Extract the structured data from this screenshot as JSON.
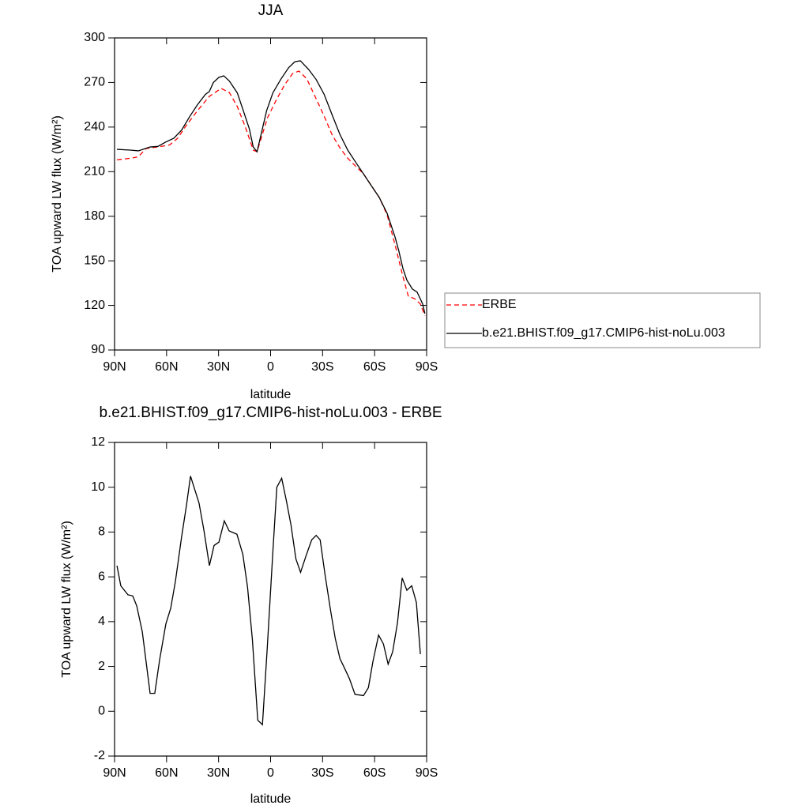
{
  "chart_data": [
    {
      "type": "line",
      "title": "JJA",
      "xlabel": "latitude",
      "ylabel": "TOA upward LW flux (W/m²)",
      "xlim": [
        90,
        -90
      ],
      "xticks": [
        {
          "value": 90,
          "label": "90N"
        },
        {
          "value": 60,
          "label": "60N"
        },
        {
          "value": 30,
          "label": "30N"
        },
        0,
        {
          "value": -30,
          "label": "30S"
        },
        {
          "value": -60,
          "label": "60S"
        },
        {
          "value": -90,
          "label": "90S"
        }
      ],
      "ylim": [
        90,
        300
      ],
      "yticks": [
        90,
        120,
        150,
        180,
        210,
        240,
        270,
        300
      ],
      "legend": "right",
      "series": [
        {
          "name": "ERBE",
          "color": "#ff0000",
          "dash": true,
          "x": [
            88.6,
            80.9,
            76.3,
            71.8,
            65,
            58.2,
            53.6,
            49,
            42.2,
            35.3,
            28.5,
            23.8,
            19.2,
            14.7,
            10,
            7.8,
            1.9,
            -3.6,
            -8.2,
            -12.7,
            -16.4,
            -20.9,
            -26.3,
            -30.9,
            -35.4,
            -40,
            -44.5,
            -53.6,
            -62.7,
            -67.2,
            -71.8,
            -76.3,
            -79.5,
            -83,
            -86.4,
            -89
          ],
          "values": [
            218,
            219,
            220,
            225.6,
            226.6,
            228,
            232.5,
            240.5,
            251,
            260.7,
            266,
            263.3,
            253.8,
            240.5,
            224.5,
            223.4,
            246,
            259,
            268.6,
            276,
            277.7,
            272.4,
            259,
            247.4,
            235,
            226,
            219,
            208.5,
            192.6,
            181,
            160.7,
            139.5,
            126,
            124.6,
            121,
            113
          ]
        },
        {
          "name": "b.e21.BHIST.f09_g17.CMIP6-hist-noLu.003",
          "color": "#000000",
          "dash": false,
          "x": [
            88.6,
            80.9,
            76.3,
            69.5,
            65,
            60.4,
            55.8,
            51.3,
            46.7,
            42.2,
            37.6,
            35.3,
            33,
            29.8,
            27,
            23.8,
            19.2,
            16,
            12.3,
            10,
            7.8,
            5.5,
            2.3,
            -1.3,
            -5.8,
            -10.4,
            -14,
            -17.2,
            -21.8,
            -26.3,
            -30.9,
            -35.4,
            -40,
            -44.5,
            -49,
            -53.6,
            -58.1,
            -62.7,
            -67.2,
            -71.8,
            -74,
            -76.3,
            -78.6,
            -81.8,
            -84.5,
            -87.7,
            -89
          ],
          "values": [
            225,
            224.5,
            224,
            226.6,
            227,
            230,
            232.5,
            238,
            247,
            255,
            262,
            264,
            270,
            273.5,
            274.5,
            271,
            263,
            252,
            239,
            226.6,
            223.4,
            235,
            251,
            263,
            272,
            280,
            284,
            284.6,
            279,
            272,
            262,
            248.5,
            235,
            224.5,
            216.5,
            208.5,
            200.6,
            192.6,
            182,
            166,
            156.5,
            145,
            137,
            131,
            129,
            121,
            114.5
          ]
        }
      ]
    },
    {
      "type": "line",
      "title": "b.e21.BHIST.f09_g17.CMIP6-hist-noLu.003 - ERBE",
      "xlabel": "latitude",
      "ylabel": "TOA upward LW flux (W/m²)",
      "xlim": [
        90,
        -90
      ],
      "xticks": [
        {
          "value": 90,
          "label": "90N"
        },
        {
          "value": 60,
          "label": "60N"
        },
        {
          "value": 30,
          "label": "30N"
        },
        0,
        {
          "value": -30,
          "label": "30S"
        },
        {
          "value": -60,
          "label": "60S"
        },
        {
          "value": -90,
          "label": "90S"
        }
      ],
      "ylim": [
        -2,
        12
      ],
      "yticks": [
        -2,
        0,
        2,
        4,
        6,
        8,
        10,
        12
      ],
      "color": "#000000",
      "x": [
        88.6,
        86.4,
        82.3,
        79.5,
        77.2,
        74,
        69.5,
        66.8,
        64,
        60.4,
        57.6,
        54.9,
        51.3,
        48.5,
        46.2,
        41.3,
        38.5,
        35.3,
        32.6,
        29.8,
        26.7,
        23.9,
        19.4,
        16,
        13.3,
        10.5,
        7.4,
        4.7,
        1.9,
        -1.3,
        -3.6,
        -6.4,
        -9.1,
        -11.8,
        -14.6,
        -17.3,
        -20.5,
        -23.7,
        -26.3,
        -28.6,
        -31.4,
        -34.6,
        -37.3,
        -40,
        -42.8,
        -45.5,
        -48.7,
        -53.6,
        -56.4,
        -59.1,
        -62.3,
        -65.1,
        -67.8,
        -70.4,
        -73.2,
        -75.9,
        -78.6,
        -81.4,
        -84.1,
        -86.4
      ],
      "values": [
        6.5,
        5.6,
        5.2,
        5.15,
        4.7,
        3.55,
        0.8,
        0.8,
        2.3,
        3.9,
        4.6,
        5.8,
        7.8,
        9.2,
        10.5,
        9.3,
        8.1,
        6.5,
        7.4,
        7.55,
        8.5,
        8.05,
        7.9,
        7.0,
        5.55,
        3.2,
        -0.4,
        -0.6,
        2.85,
        7.1,
        10.0,
        10.4,
        9.4,
        8.3,
        6.8,
        6.2,
        6.95,
        7.65,
        7.85,
        7.65,
        6.1,
        4.5,
        3.25,
        2.35,
        1.9,
        1.45,
        0.75,
        0.7,
        1.05,
        2.25,
        3.4,
        3.0,
        2.1,
        2.65,
        3.95,
        5.95,
        5.4,
        5.6,
        4.85,
        2.55
      ]
    }
  ]
}
